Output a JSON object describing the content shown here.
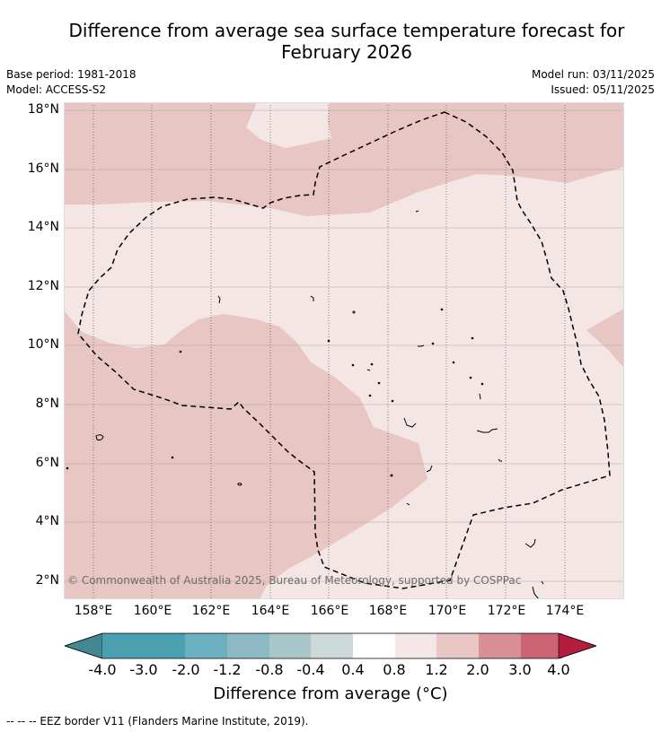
{
  "title": "Difference from average sea surface temperature forecast for February 2026",
  "meta": {
    "base_period": "Base period: 1981-2018",
    "model": "Model: ACCESS-S2",
    "model_run": "Model run: 03/11/2025",
    "issued": "Issued: 05/11/2025"
  },
  "map": {
    "lat_labels": [
      "18°N",
      "16°N",
      "14°N",
      "12°N",
      "10°N",
      "8°N",
      "6°N",
      "4°N",
      "2°N"
    ],
    "lon_labels": [
      "158°E",
      "160°E",
      "162°E",
      "164°E",
      "166°E",
      "168°E",
      "170°E",
      "172°E",
      "174°E"
    ],
    "copyright": "© Commonwealth of Australia 2025, Bureau of Meteorology, supported by COSPPac",
    "anomaly_categories": [
      {
        "range": "0.4 to 0.8",
        "color": "#f3e6e5"
      },
      {
        "range": "0.8 to 1.2",
        "color": "#e7c6c3"
      }
    ]
  },
  "colorbar": {
    "ticks": [
      "-4.0",
      "-3.0",
      "-2.0",
      "-1.2",
      "-0.8",
      "-0.4",
      "0.4",
      "0.8",
      "1.2",
      "2.0",
      "3.0",
      "4.0"
    ],
    "colors": [
      "#4a9fb0",
      "#6ab0bf",
      "#8db9c4",
      "#a9c7ca",
      "#cdd8da",
      "#ffffff",
      "#f3e6e5",
      "#e7c6c3",
      "#d88e97",
      "#cb6573",
      "#c14458"
    ],
    "under_color": "#428892",
    "over_color": "#b31e3f",
    "label": "Difference from average (°C)"
  },
  "footer": "--  --  -- EEZ border V11 (Flanders Marine Institute, 2019)."
}
